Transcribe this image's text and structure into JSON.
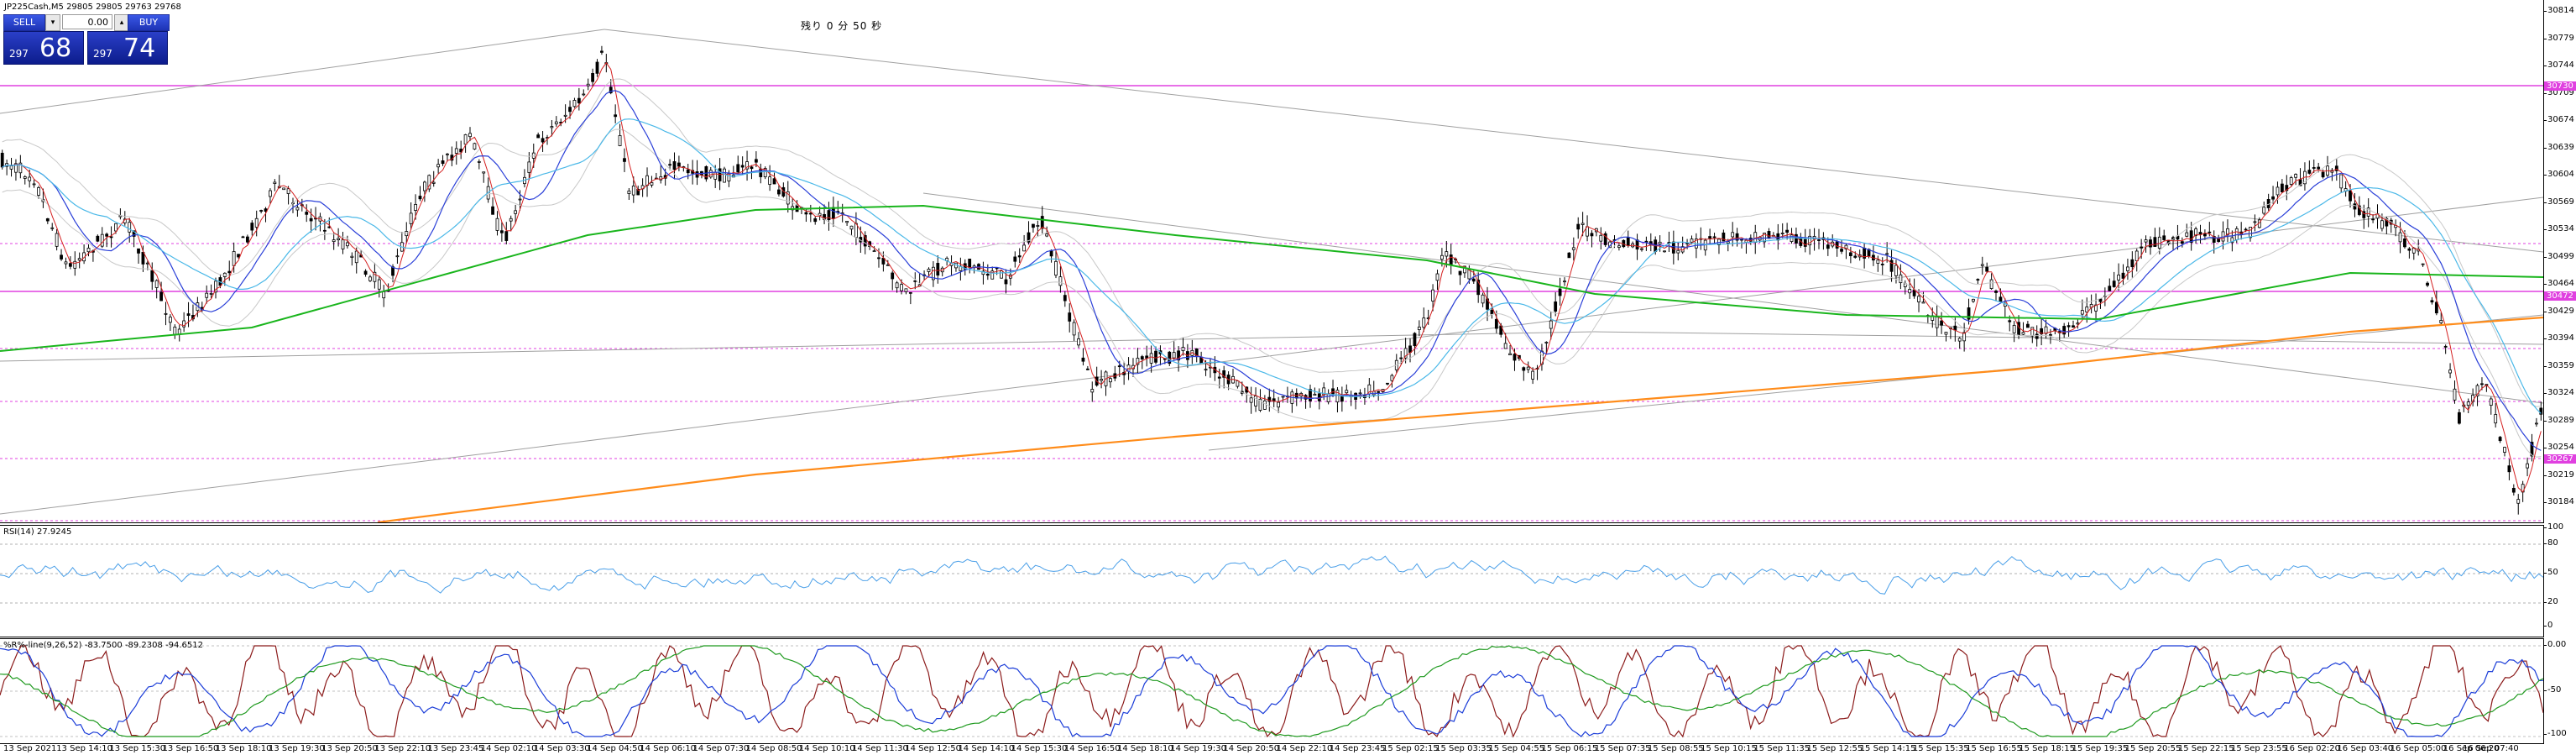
{
  "window": {
    "symbol_label": "JP225Cash,M5  29805 29805 29763 29768",
    "countdown": "残り 0 分 50 秒"
  },
  "trade_panel": {
    "sell_label": "SELL",
    "buy_label": "BUY",
    "lot_value": "0.00",
    "sell_price_small": "297",
    "sell_price_big": "68",
    "buy_price_small": "297",
    "buy_price_big": "74",
    "sell_color": "#1d33b5",
    "buy_color": "#1d33b5"
  },
  "price_axis": {
    "ticks": [
      "30814",
      "30779",
      "30744",
      "30709",
      "30674",
      "30639",
      "30604",
      "30569",
      "30534",
      "30499",
      "30464",
      "30429",
      "30394",
      "30359",
      "30324",
      "30289",
      "30254",
      "30219",
      "30184"
    ],
    "tags": [
      {
        "label": "30730",
        "color": "#e040e0"
      },
      {
        "label": "30472",
        "color": "#e040e0"
      },
      {
        "label": "30267",
        "color": "#e040e0"
      }
    ]
  },
  "rsi_panel": {
    "label": "RSI(14) 27.9245",
    "ticks": [
      "100",
      "80",
      "50",
      "20",
      "0"
    ],
    "line_color": "#4a9fe8"
  },
  "wpr_panel": {
    "label": "%R%-line(9,26,52) -83.7500 -89.2308 -94.6512",
    "ticks": [
      "0.00",
      "-50",
      "-100"
    ],
    "colors": {
      "fast": "#8b1a1a",
      "mid": "#1a3cd8",
      "slow": "#1f9a1f"
    }
  },
  "time_axis": {
    "labels": [
      "13 Sep 2021",
      "13 Sep 14:10",
      "13 Sep 15:30",
      "13 Sep 16:50",
      "13 Sep 18:10",
      "13 Sep 19:30",
      "13 Sep 20:50",
      "13 Sep 22:10",
      "13 Sep 23:45",
      "14 Sep 02:10",
      "14 Sep 03:30",
      "14 Sep 04:50",
      "14 Sep 06:10",
      "14 Sep 07:30",
      "14 Sep 08:50",
      "14 Sep 10:10",
      "14 Sep 11:30",
      "14 Sep 12:50",
      "14 Sep 14:10",
      "14 Sep 15:30",
      "14 Sep 16:50",
      "14 Sep 18:10",
      "14 Sep 19:30",
      "14 Sep 20:50",
      "14 Sep 22:10",
      "14 Sep 23:45",
      "15 Sep 02:15",
      "15 Sep 03:35",
      "15 Sep 04:55",
      "15 Sep 06:15",
      "15 Sep 07:35",
      "15 Sep 08:55",
      "15 Sep 10:15",
      "15 Sep 11:35",
      "15 Sep 12:55",
      "15 Sep 14:15",
      "15 Sep 15:35",
      "15 Sep 16:55",
      "15 Sep 18:15",
      "15 Sep 19:35",
      "15 Sep 20:55",
      "15 Sep 22:15",
      "15 Sep 23:55",
      "16 Sep 02:20",
      "16 Sep 03:40",
      "16 Sep 05:00",
      "16 Sep 06:20",
      "16 Sep 07:40"
    ]
  },
  "colors": {
    "ma_green": "#19b51c",
    "ma_orange": "#ff8c1a",
    "ma_blue": "#2a3fd8",
    "ma_cyan": "#4ab8e8",
    "ma_red": "#d42020",
    "level_magenta": "#e040e0",
    "trendline_gray": "#a0a0a0",
    "bands_gray": "#c8c8c8"
  }
}
